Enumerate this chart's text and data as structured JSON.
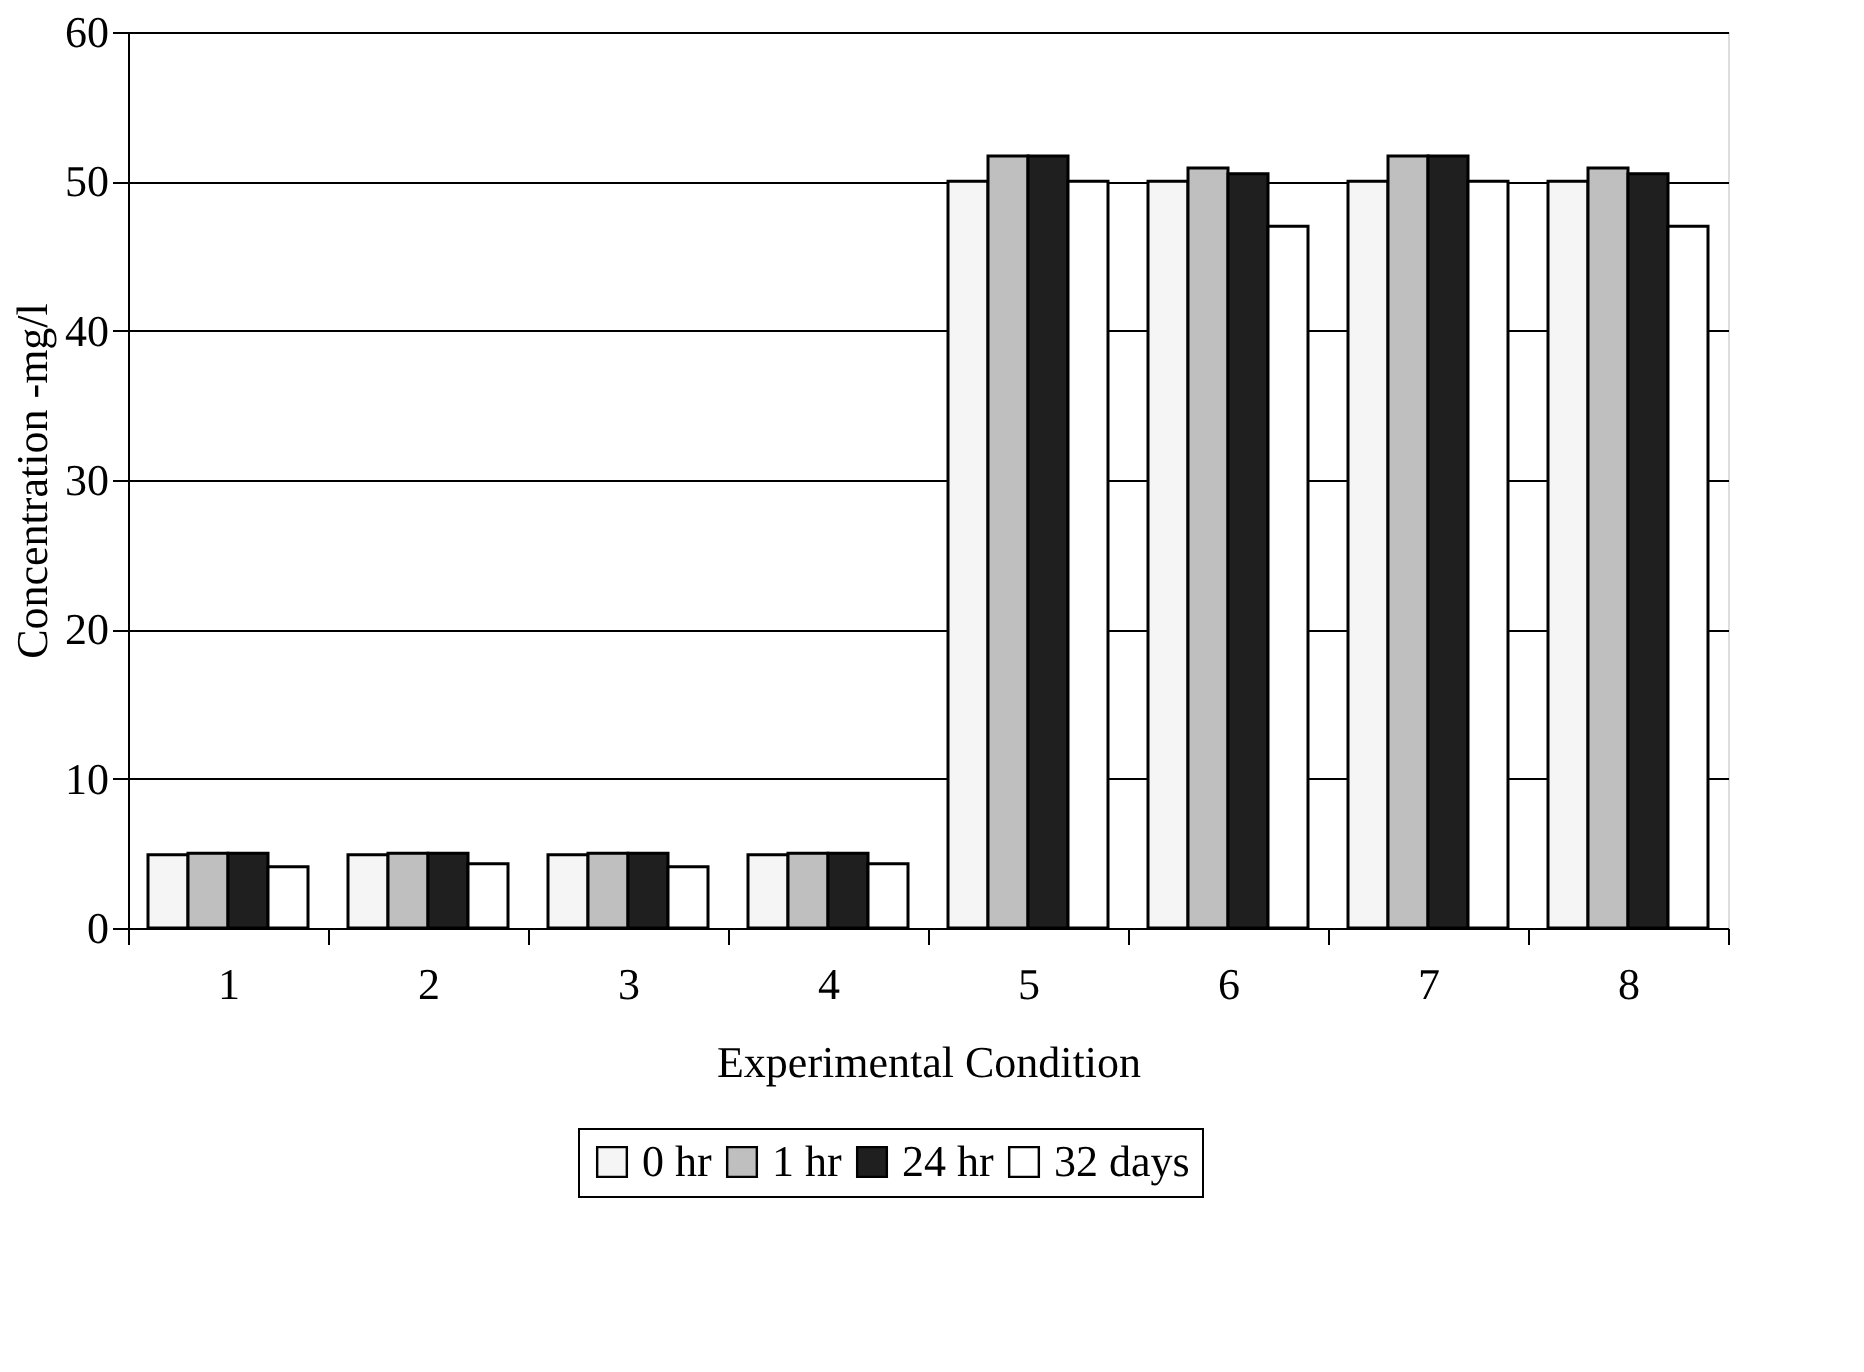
{
  "chart_data": {
    "type": "bar",
    "xlabel": "Experimental Condition",
    "ylabel": "Concentration -mg/l",
    "categories": [
      "1",
      "2",
      "3",
      "4",
      "5",
      "6",
      "7",
      "8"
    ],
    "series": [
      {
        "name": "0 hr",
        "color": "#f5f5f5",
        "values": [
          4.9,
          4.9,
          4.9,
          4.9,
          50,
          50,
          50,
          50
        ]
      },
      {
        "name": "1 hr",
        "color": "#bfbfbf",
        "values": [
          5.0,
          5.0,
          5.0,
          5.0,
          51.7,
          50.9,
          51.7,
          50.9
        ]
      },
      {
        "name": "24 hr",
        "color": "#1f1f1f",
        "values": [
          5.0,
          5.0,
          5.0,
          5.0,
          51.7,
          50.5,
          51.7,
          50.5
        ]
      },
      {
        "name": "32 days",
        "color": "#ffffff",
        "values": [
          4.1,
          4.3,
          4.1,
          4.3,
          50,
          47.0,
          50,
          47.0
        ]
      }
    ],
    "ylim": [
      0,
      60
    ],
    "yticks": [
      0,
      10,
      20,
      30,
      40,
      50,
      60
    ],
    "grid": "y",
    "legend": "bottom"
  }
}
